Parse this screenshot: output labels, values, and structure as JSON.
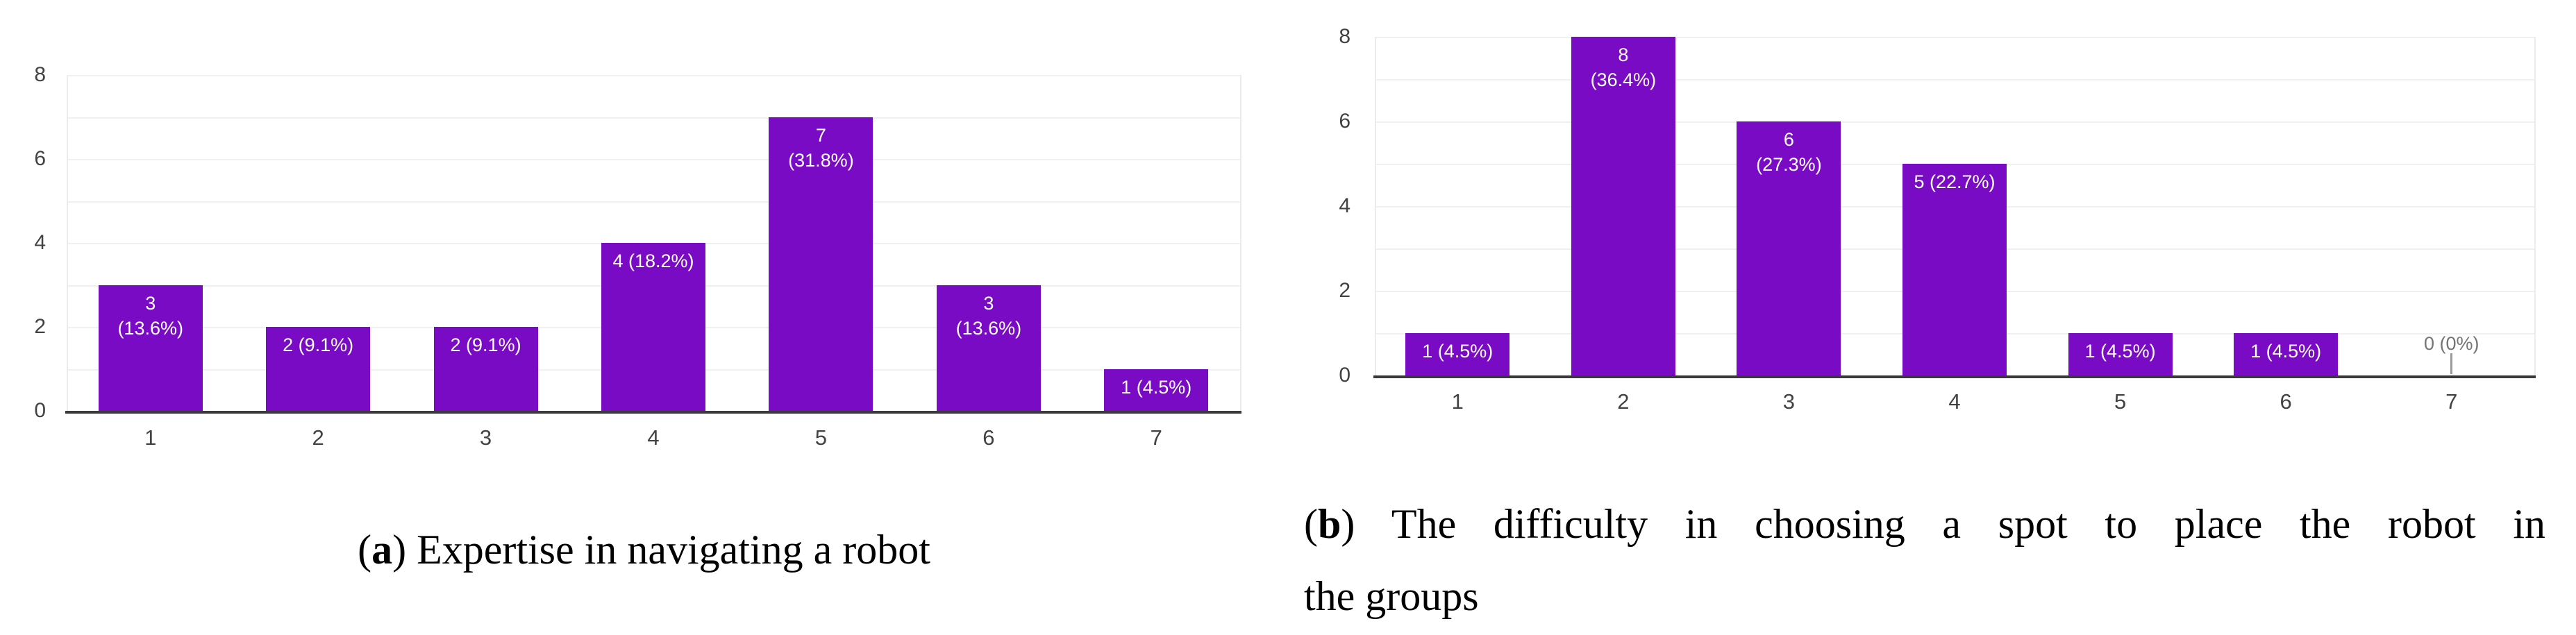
{
  "figure": {
    "background": "#ffffff",
    "bar_color": "#7A0BC4",
    "axis_color": "#3a3a3a",
    "gridline_color": "#f0f0f0",
    "tick_label_color": "#424242",
    "bar_label_color": "#ffffff",
    "zero_label_color": "#757575",
    "captions": {
      "a": {
        "paren_open": "(",
        "letter": "a",
        "rest": ") Expertise in navigating a robot"
      },
      "b": {
        "paren_open": "(",
        "letter": "b",
        "rest_line1": ") The difficulty in choosing a spot to place the robot in",
        "line2": "the groups"
      }
    },
    "charts": [
      {
        "id": "a",
        "y_tick_labels": [
          "0",
          "2",
          "4",
          "6",
          "8"
        ],
        "y_tick_values": [
          0,
          2,
          4,
          6,
          8
        ],
        "bars": [
          {
            "category": "1",
            "value": 3,
            "label_lines": [
              "3",
              "(13.6%)"
            ],
            "label_style": "inside"
          },
          {
            "category": "2",
            "value": 2,
            "label_lines": [
              "2 (9.1%)"
            ],
            "label_style": "inside"
          },
          {
            "category": "3",
            "value": 2,
            "label_lines": [
              "2 (9.1%)"
            ],
            "label_style": "inside"
          },
          {
            "category": "4",
            "value": 4,
            "label_lines": [
              "4 (18.2%)"
            ],
            "label_style": "inside"
          },
          {
            "category": "5",
            "value": 7,
            "label_lines": [
              "7",
              "(31.8%)"
            ],
            "label_style": "inside"
          },
          {
            "category": "6",
            "value": 3,
            "label_lines": [
              "3",
              "(13.6%)"
            ],
            "label_style": "inside"
          },
          {
            "category": "7",
            "value": 1,
            "label_lines": [
              "1 (4.5%)"
            ],
            "label_style": "inside"
          }
        ]
      },
      {
        "id": "b",
        "y_tick_labels": [
          "0",
          "2",
          "4",
          "6",
          "8"
        ],
        "y_tick_values": [
          0,
          2,
          4,
          6,
          8
        ],
        "bars": [
          {
            "category": "1",
            "value": 1,
            "label_lines": [
              "1 (4.5%)"
            ],
            "label_style": "inside"
          },
          {
            "category": "2",
            "value": 8,
            "label_lines": [
              "8",
              "(36.4%)"
            ],
            "label_style": "inside"
          },
          {
            "category": "3",
            "value": 6,
            "label_lines": [
              "6",
              "(27.3%)"
            ],
            "label_style": "inside"
          },
          {
            "category": "4",
            "value": 5,
            "label_lines": [
              "5 (22.7%)"
            ],
            "label_style": "inside"
          },
          {
            "category": "5",
            "value": 1,
            "label_lines": [
              "1 (4.5%)"
            ],
            "label_style": "inside"
          },
          {
            "category": "6",
            "value": 1,
            "label_lines": [
              "1 (4.5%)"
            ],
            "label_style": "inside"
          },
          {
            "category": "7",
            "value": 0,
            "label_lines": [
              "0 (0%)"
            ],
            "label_style": "above-axis"
          }
        ]
      }
    ]
  },
  "chart_data": [
    {
      "type": "bar",
      "title": "(a) Expertise in navigating a robot",
      "categories": [
        "1",
        "2",
        "3",
        "4",
        "5",
        "6",
        "7"
      ],
      "values": [
        3,
        2,
        2,
        4,
        7,
        3,
        1
      ],
      "data_labels": [
        "3 (13.6%)",
        "2 (9.1%)",
        "2 (9.1%)",
        "4 (18.2%)",
        "7 (31.8%)",
        "3 (13.6%)",
        "1 (4.5%)"
      ],
      "xlabel": "",
      "ylabel": "",
      "ylim": [
        0,
        8
      ],
      "y_ticks": [
        0,
        2,
        4,
        6,
        8
      ],
      "grid": "horizontal, every 1 unit",
      "legend": "none",
      "bar_color": "#7A0BC4"
    },
    {
      "type": "bar",
      "title": "(b) The difficulty in choosing a spot to place the robot in the groups",
      "categories": [
        "1",
        "2",
        "3",
        "4",
        "5",
        "6",
        "7"
      ],
      "values": [
        1,
        8,
        6,
        5,
        1,
        1,
        0
      ],
      "data_labels": [
        "1 (4.5%)",
        "8 (36.4%)",
        "6 (27.3%)",
        "5 (22.7%)",
        "1 (4.5%)",
        "1 (4.5%)",
        "0 (0%)"
      ],
      "xlabel": "",
      "ylabel": "",
      "ylim": [
        0,
        8
      ],
      "y_ticks": [
        0,
        2,
        4,
        6,
        8
      ],
      "grid": "horizontal, every 1 unit",
      "legend": "none",
      "bar_color": "#7A0BC4"
    }
  ]
}
